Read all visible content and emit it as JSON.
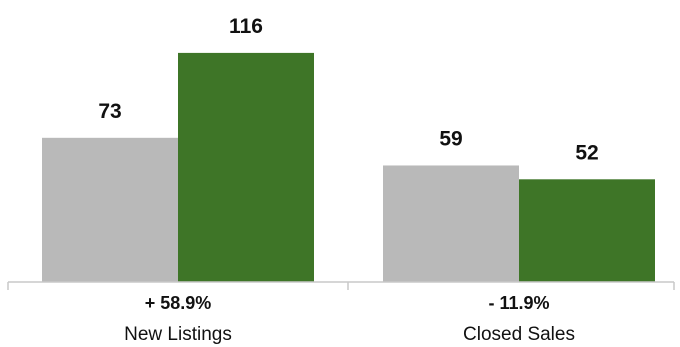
{
  "chart_data": {
    "type": "bar",
    "categories": [
      "New Listings",
      "Closed Sales"
    ],
    "series": [
      {
        "values": [
          73,
          59
        ],
        "color": "#b9b9b9"
      },
      {
        "values": [
          116,
          52
        ],
        "color": "#3e7527"
      }
    ],
    "change_labels": [
      "+ 58.9%",
      "- 11.9%"
    ],
    "value_labels": [
      [
        "73",
        "59"
      ],
      [
        "116",
        "52"
      ]
    ],
    "ylim": [
      0,
      130
    ],
    "grid": false,
    "axis_color": "#c8c8c8"
  }
}
